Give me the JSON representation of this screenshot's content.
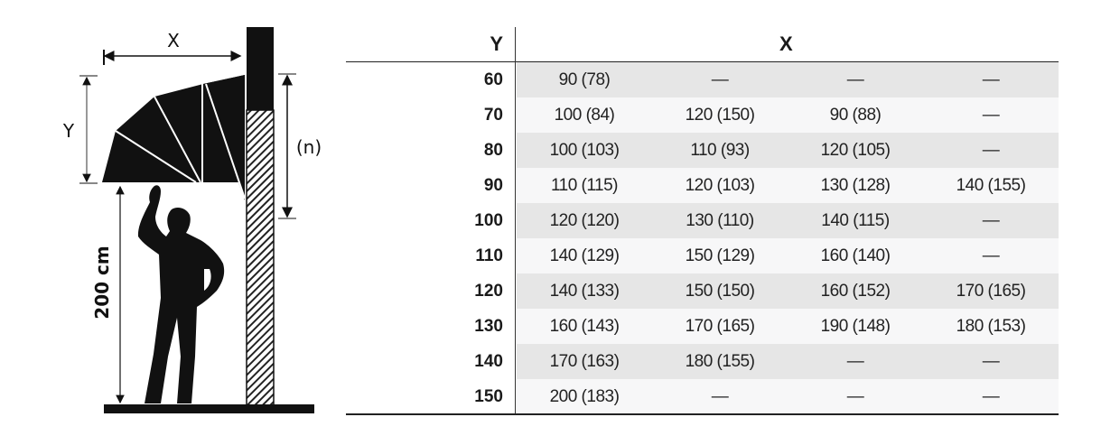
{
  "diagram": {
    "label_x": "X",
    "label_y": "Y",
    "label_n": "(n)",
    "label_height": "200 cm"
  },
  "table": {
    "header_y": "Y",
    "header_x": "X",
    "rows": [
      {
        "y": "60",
        "x": [
          "90 (78)",
          "—",
          "—",
          "—"
        ]
      },
      {
        "y": "70",
        "x": [
          "100 (84)",
          "120 (150)",
          "90 (88)",
          "—"
        ]
      },
      {
        "y": "80",
        "x": [
          "100 (103)",
          "110 (93)",
          "120 (105)",
          "—"
        ]
      },
      {
        "y": "90",
        "x": [
          "110 (115)",
          "120 (103)",
          "130 (128)",
          "140 (155)"
        ]
      },
      {
        "y": "100",
        "x": [
          "120 (120)",
          "130 (110)",
          "140 (115)",
          "—"
        ]
      },
      {
        "y": "110",
        "x": [
          "140 (129)",
          "150 (129)",
          "160 (140)",
          "—"
        ]
      },
      {
        "y": "120",
        "x": [
          "140 (133)",
          "150 (150)",
          "160 (152)",
          "170 (165)"
        ]
      },
      {
        "y": "130",
        "x": [
          "160 (143)",
          "170 (165)",
          "190 (148)",
          "180 (153)"
        ]
      },
      {
        "y": "140",
        "x": [
          "170 (163)",
          "180 (155)",
          "—",
          "—"
        ]
      },
      {
        "y": "150",
        "x": [
          "200 (183)",
          "—",
          "—",
          "—"
        ]
      }
    ]
  },
  "colors": {
    "shade": "#e6e6e6",
    "light": "#f7f7f8",
    "ink": "#111111"
  }
}
